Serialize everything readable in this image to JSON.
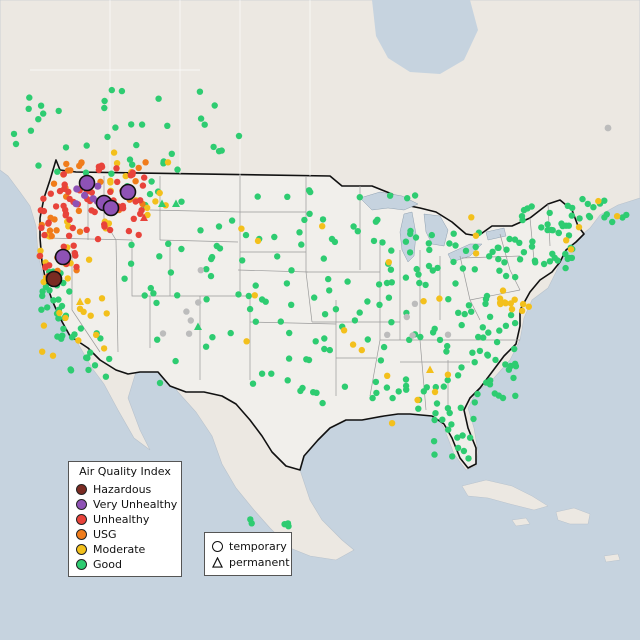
{
  "legend": {
    "title": "Air Quality Index",
    "categories": [
      {
        "label": "Hazardous",
        "color": "#7a2b22"
      },
      {
        "label": "Very Unhealthy",
        "color": "#8e52b5"
      },
      {
        "label": "Unhealthy",
        "color": "#e8433b"
      },
      {
        "label": "USG",
        "color": "#f07c1b"
      },
      {
        "label": "Moderate",
        "color": "#f3c01c"
      },
      {
        "label": "Good",
        "color": "#2ecc71"
      }
    ],
    "types": [
      {
        "label": "temporary",
        "icon": "circle-icon"
      },
      {
        "label": "permanent",
        "icon": "triangle-icon"
      }
    ]
  },
  "colors": {
    "water": "#c6d3df",
    "land": "#ece8e2",
    "usa_land": "#f1efeb",
    "border": "#111111",
    "state_line": "#9a9a9a",
    "no_data": "#bcbcbc"
  }
}
